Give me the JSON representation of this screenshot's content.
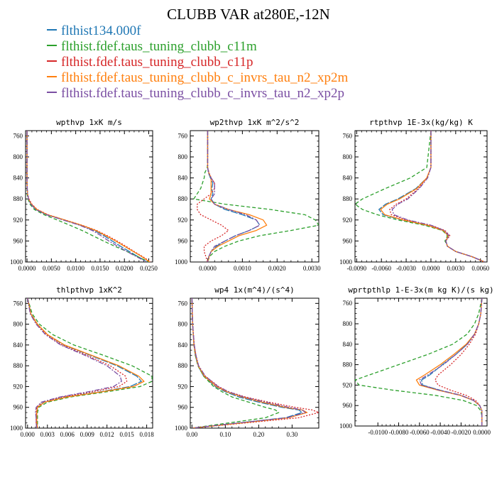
{
  "title": "CLUBB VAR at280E,-12N",
  "legend": [
    {
      "label": "flthist134.000f",
      "color": "#1f77b4"
    },
    {
      "label": "flthist.fdef.taus_tuning_clubb_c11m",
      "color": "#2ca02c"
    },
    {
      "label": "flthist.fdef.taus_tuning_clubb_c11p",
      "color": "#d62728"
    },
    {
      "label": "flthist.fdef.taus_tuning_clubb_c_invrs_tau_n2_xp2m",
      "color": "#ff7f0e"
    },
    {
      "label": "flthist.fdef.taus_tuning_clubb_c_invrs_tau_n2_xp2p",
      "color": "#7b4fa3"
    }
  ],
  "chart_data": [
    {
      "type": "line",
      "title": "wpthvp  1xK m/s",
      "xlim": [
        -0.0003,
        0.0258
      ],
      "ylim": [
        1000,
        750
      ],
      "xticks": [
        "0.0000",
        "0.0050",
        "0.0100",
        "0.0150",
        "0.0200",
        "0.0250"
      ],
      "xtick_values": [
        0,
        0.005,
        0.01,
        0.015,
        0.02,
        0.025
      ],
      "yticks": [
        "760",
        "800",
        "840",
        "880",
        "920",
        "960",
        "1000"
      ],
      "ytick_values": [
        760,
        800,
        840,
        880,
        920,
        960,
        1000
      ],
      "y": [
        750,
        820,
        850,
        870,
        880,
        890,
        900,
        910,
        920,
        930,
        940,
        950,
        960,
        970,
        980,
        990,
        1000
      ],
      "series": [
        {
          "x": [
            0,
            0,
            0,
            0.0001,
            0.0003,
            0.0008,
            0.0018,
            0.004,
            0.0075,
            0.011,
            0.0138,
            0.0158,
            0.0175,
            0.0192,
            0.021,
            0.0228,
            0.0248
          ]
        },
        {
          "x": [
            0,
            0,
            0,
            0,
            0.0002,
            0.0006,
            0.0015,
            0.0035,
            0.0062,
            0.0088,
            0.0113,
            0.0135,
            0.0157,
            0.018,
            0.0205,
            0.0228,
            0.025
          ]
        },
        {
          "x": [
            0,
            0,
            0,
            0.0001,
            0.0004,
            0.001,
            0.0021,
            0.0043,
            0.0078,
            0.0113,
            0.0143,
            0.0165,
            0.0185,
            0.0203,
            0.022,
            0.0238,
            0.0254
          ]
        },
        {
          "x": [
            0,
            0,
            0,
            0.0001,
            0.0003,
            0.0009,
            0.002,
            0.0042,
            0.0077,
            0.0112,
            0.0141,
            0.0162,
            0.0182,
            0.02,
            0.0218,
            0.0236,
            0.0252
          ]
        },
        {
          "x": [
            0,
            0,
            0,
            0.0001,
            0.0003,
            0.0008,
            0.0018,
            0.004,
            0.0074,
            0.0108,
            0.0134,
            0.0152,
            0.0168,
            0.0186,
            0.0205,
            0.0225,
            0.0246
          ]
        }
      ]
    },
    {
      "type": "line",
      "title": "wp2thvp  1xK m^2/s^2",
      "xlim": [
        -0.0005,
        0.0032
      ],
      "ylim": [
        1000,
        750
      ],
      "xticks": [
        "0.0000",
        "0.0010",
        "0.0020",
        "0.0030"
      ],
      "xtick_values": [
        0,
        0.001,
        0.002,
        0.003
      ],
      "yticks": [
        "760",
        "800",
        "840",
        "880",
        "920",
        "960",
        "1000"
      ],
      "ytick_values": [
        760,
        800,
        840,
        880,
        920,
        960,
        1000
      ],
      "y": [
        750,
        800,
        820,
        830,
        840,
        850,
        860,
        870,
        880,
        890,
        900,
        910,
        920,
        930,
        940,
        950,
        960,
        970,
        980,
        990,
        1000
      ],
      "series": [
        {
          "x": [
            0,
            0,
            0,
            2e-05,
            8e-05,
            0.00015,
            0.00012,
            0.00015,
            0.0001,
            0.0002,
            0.0005,
            0.001,
            0.0014,
            0.0015,
            0.0012,
            0.0008,
            0.0005,
            0.00025,
            0.0001,
            3e-05,
            0
          ]
        },
        {
          "x": [
            0,
            0,
            -1e-05,
            -8e-05,
            -0.0001,
            -0.00015,
            -0.0002,
            -0.0003,
            -0.0004,
            0.0005,
            0.0018,
            0.0028,
            0.0031,
            0.0032,
            0.0024,
            0.0015,
            0.0009,
            0.0005,
            0.0002,
            5e-05,
            0
          ]
        },
        {
          "x": [
            0,
            0,
            0,
            4e-05,
            0.0001,
            0.0002,
            0.0002,
            0.0001,
            -0.0001,
            -0.0003,
            -0.0003,
            -0.0002,
            0.0001,
            0.0004,
            0.0006,
            0.0004,
            0.0001,
            -0.0001,
            -0.0001,
            -5e-05,
            0
          ]
        },
        {
          "x": [
            0,
            0,
            0,
            3e-05,
            0.0001,
            0.0001,
            0.0001,
            0.0001,
            5e-05,
            0.0002,
            0.0006,
            0.0012,
            0.0016,
            0.0017,
            0.0014,
            0.0009,
            0.0006,
            0.0003,
            0.0001,
            4e-05,
            0
          ]
        },
        {
          "x": [
            0,
            0,
            0,
            3e-05,
            0.0001,
            0.0002,
            0.0002,
            0.0002,
            0.0001,
            0.0002,
            0.0006,
            0.0011,
            0.0014,
            0.0015,
            0.0012,
            0.0008,
            0.0005,
            0.0002,
            0.0001,
            3e-05,
            0
          ]
        }
      ]
    },
    {
      "type": "line",
      "title": "rtpthvp  1E-3x(kg/kg) K",
      "xlim": [
        -0.0092,
        0.0068
      ],
      "ylim": [
        1000,
        750
      ],
      "xticks": [
        "-0.0090",
        "-0.0060",
        "-0.0030",
        "0.0000",
        "0.0030",
        "0.0060"
      ],
      "xtick_values": [
        -0.009,
        -0.006,
        -0.003,
        0,
        0.003,
        0.006
      ],
      "yticks": [
        "760",
        "800",
        "840",
        "880",
        "920",
        "960",
        "1000"
      ],
      "ytick_values": [
        760,
        800,
        840,
        880,
        920,
        960,
        1000
      ],
      "y": [
        750,
        820,
        840,
        860,
        880,
        890,
        900,
        910,
        920,
        930,
        940,
        950,
        960,
        970,
        980,
        990,
        1000
      ],
      "series": [
        {
          "x": [
            0,
            0,
            -0.0005,
            -0.0018,
            -0.004,
            -0.0055,
            -0.0063,
            -0.0058,
            -0.0035,
            -0.0005,
            0.0015,
            0.0021,
            0.0018,
            0.002,
            0.003,
            0.005,
            0.0065
          ]
        },
        {
          "x": [
            0,
            -0.0005,
            -0.0025,
            -0.0055,
            -0.0083,
            -0.0092,
            -0.0083,
            -0.0065,
            -0.004,
            -0.0008,
            0.0014,
            0.002,
            0.0017,
            0.002,
            0.003,
            0.005,
            0.0065
          ]
        },
        {
          "x": [
            0,
            0,
            -0.0005,
            -0.0015,
            -0.003,
            -0.0042,
            -0.005,
            -0.0048,
            -0.003,
            0,
            0.0017,
            0.0023,
            0.0018,
            0.002,
            0.003,
            0.005,
            0.0065
          ]
        },
        {
          "x": [
            0,
            0,
            -0.0005,
            -0.0017,
            -0.0038,
            -0.0053,
            -0.0061,
            -0.0056,
            -0.0034,
            -0.0004,
            0.0015,
            0.0021,
            0.0018,
            0.002,
            0.003,
            0.005,
            0.0065
          ]
        },
        {
          "x": [
            0,
            0,
            -0.0004,
            -0.0014,
            -0.0028,
            -0.004,
            -0.0047,
            -0.0045,
            -0.0028,
            0,
            0.0016,
            0.0022,
            0.0018,
            0.002,
            0.003,
            0.005,
            0.0065
          ]
        }
      ]
    },
    {
      "type": "line",
      "title": "thlpthvp  1xK^2",
      "xlim": [
        -0.0003,
        0.0189
      ],
      "ylim": [
        1000,
        750
      ],
      "xticks": [
        "0.000",
        "0.003",
        "0.006",
        "0.009",
        "0.012",
        "0.015",
        "0.018"
      ],
      "xtick_values": [
        0,
        0.003,
        0.006,
        0.009,
        0.012,
        0.015,
        0.018
      ],
      "yticks": [
        "760",
        "800",
        "840",
        "880",
        "920",
        "960",
        "1000"
      ],
      "ytick_values": [
        760,
        800,
        840,
        880,
        920,
        960,
        1000
      ],
      "y": [
        750,
        780,
        800,
        820,
        840,
        860,
        880,
        900,
        910,
        920,
        930,
        940,
        950,
        960,
        970,
        980,
        990,
        1000
      ],
      "series": [
        {
          "x": [
            0,
            0.0005,
            0.0015,
            0.003,
            0.0055,
            0.0095,
            0.0135,
            0.0165,
            0.0172,
            0.0155,
            0.011,
            0.0058,
            0.0025,
            0.0015,
            0.0014,
            0.0014,
            0.0014,
            0.0015
          ]
        },
        {
          "x": [
            0,
            0.0007,
            0.0018,
            0.0038,
            0.007,
            0.0115,
            0.0158,
            0.0188,
            0.0188,
            0.017,
            0.012,
            0.0065,
            0.003,
            0.0017,
            0.0015,
            0.0015,
            0.0015,
            0.0015
          ]
        },
        {
          "x": [
            0,
            0.0005,
            0.0014,
            0.0028,
            0.0052,
            0.009,
            0.0125,
            0.0148,
            0.015,
            0.0138,
            0.0098,
            0.0052,
            0.0022,
            0.0014,
            0.0013,
            0.0013,
            0.0013,
            0.0014
          ]
        },
        {
          "x": [
            0,
            0.0005,
            0.0015,
            0.003,
            0.0056,
            0.0097,
            0.0138,
            0.0168,
            0.0176,
            0.016,
            0.0113,
            0.006,
            0.0026,
            0.0015,
            0.0014,
            0.0014,
            0.0014,
            0.0015
          ]
        },
        {
          "x": [
            0,
            0.0004,
            0.0013,
            0.0027,
            0.005,
            0.0087,
            0.012,
            0.014,
            0.0142,
            0.013,
            0.0092,
            0.0049,
            0.0021,
            0.0013,
            0.0012,
            0.0013,
            0.0013,
            0.0014
          ]
        }
      ]
    },
    {
      "type": "line",
      "title": "wp4  1x(m^4)/(s^4)",
      "xlim": [
        -0.005,
        0.38
      ],
      "ylim": [
        1000,
        750
      ],
      "xticks": [
        "0.00",
        "0.10",
        "0.20",
        "0.30"
      ],
      "xtick_values": [
        0,
        0.1,
        0.2,
        0.3
      ],
      "yticks": [
        "760",
        "800",
        "840",
        "880",
        "920",
        "960",
        "1000"
      ],
      "ytick_values": [
        760,
        800,
        840,
        880,
        920,
        960,
        1000
      ],
      "y": [
        750,
        800,
        840,
        860,
        880,
        900,
        920,
        930,
        940,
        950,
        960,
        965,
        970,
        980,
        990,
        1000
      ],
      "series": [
        {
          "x": [
            0,
            0.002,
            0.006,
            0.01,
            0.018,
            0.035,
            0.07,
            0.1,
            0.14,
            0.2,
            0.27,
            0.32,
            0.33,
            0.28,
            0.14,
            0
          ]
        },
        {
          "x": [
            0,
            0.002,
            0.006,
            0.01,
            0.018,
            0.035,
            0.065,
            0.09,
            0.12,
            0.17,
            0.22,
            0.25,
            0.26,
            0.22,
            0.11,
            0
          ]
        },
        {
          "x": [
            0,
            0.002,
            0.007,
            0.012,
            0.02,
            0.04,
            0.08,
            0.11,
            0.16,
            0.23,
            0.31,
            0.36,
            0.38,
            0.32,
            0.16,
            0
          ]
        },
        {
          "x": [
            0,
            0.002,
            0.006,
            0.011,
            0.019,
            0.037,
            0.073,
            0.105,
            0.15,
            0.21,
            0.28,
            0.33,
            0.345,
            0.29,
            0.15,
            0
          ]
        },
        {
          "x": [
            0,
            0.002,
            0.007,
            0.012,
            0.02,
            0.04,
            0.078,
            0.11,
            0.155,
            0.22,
            0.29,
            0.33,
            0.34,
            0.285,
            0.14,
            0
          ]
        }
      ]
    },
    {
      "type": "line",
      "title": "wprtpthlp  1-E-3x(m kg K)/(s kg)",
      "xlim": [
        -0.0122,
        0.0005
      ],
      "ylim": [
        1000,
        750
      ],
      "xticks": [
        "-0.0100",
        "-0.0080",
        "-0.0060",
        "-0.0040",
        "-0.0020",
        "0.0000"
      ],
      "xtick_values": [
        -0.01,
        -0.008,
        -0.006,
        -0.004,
        -0.002,
        0
      ],
      "yticks": [
        "760",
        "800",
        "840",
        "880",
        "920",
        "960",
        "1000"
      ],
      "ytick_values": [
        760,
        800,
        840,
        880,
        920,
        960,
        1000
      ],
      "y": [
        750,
        780,
        800,
        820,
        840,
        860,
        880,
        900,
        910,
        920,
        930,
        940,
        950,
        960,
        970,
        980,
        990,
        1000
      ],
      "series": [
        {
          "x": [
            0,
            -0.0001,
            -0.0003,
            -0.0007,
            -0.0014,
            -0.0025,
            -0.0038,
            -0.005,
            -0.0058,
            -0.0057,
            -0.004,
            -0.002,
            -0.0008,
            -0.0002,
            0,
            0,
            0,
            0
          ]
        },
        {
          "x": [
            0,
            -0.0003,
            -0.0007,
            -0.0014,
            -0.0028,
            -0.0052,
            -0.008,
            -0.0108,
            -0.0122,
            -0.0118,
            -0.0085,
            -0.0045,
            -0.0018,
            -0.0005,
            -0.0001,
            0,
            0,
            0
          ]
        },
        {
          "x": [
            0,
            -0.0001,
            -0.0003,
            -0.0006,
            -0.0012,
            -0.002,
            -0.003,
            -0.0042,
            -0.0045,
            -0.0042,
            -0.003,
            -0.0015,
            -0.0006,
            -0.0002,
            0,
            0,
            0,
            0
          ]
        },
        {
          "x": [
            0,
            -0.0001,
            -0.0003,
            -0.0007,
            -0.0015,
            -0.0027,
            -0.004,
            -0.0055,
            -0.0063,
            -0.006,
            -0.0042,
            -0.0021,
            -0.0008,
            -0.0002,
            0,
            0,
            0,
            0
          ]
        },
        {
          "x": [
            0,
            -0.0001,
            -0.0003,
            -0.0007,
            -0.0014,
            -0.0025,
            -0.0037,
            -0.0052,
            -0.006,
            -0.0058,
            -0.0041,
            -0.002,
            -0.0008,
            -0.0002,
            0,
            0,
            0,
            0
          ]
        }
      ]
    }
  ]
}
